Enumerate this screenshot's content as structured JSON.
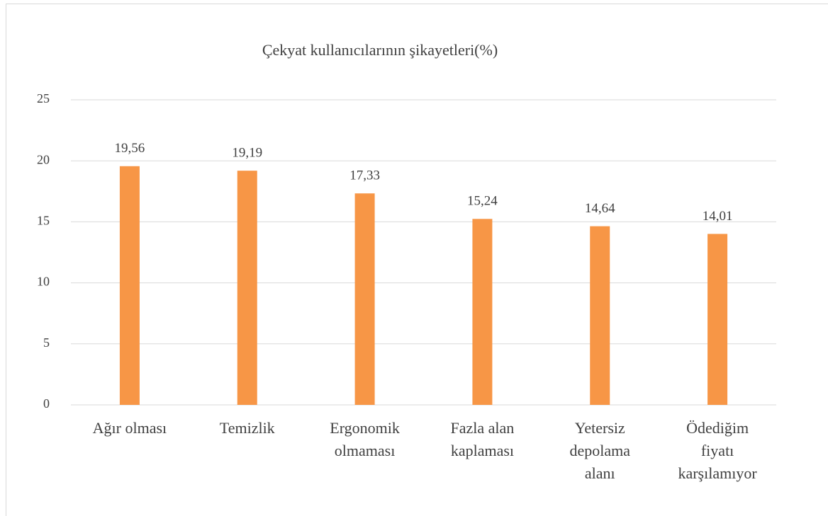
{
  "chart_data": {
    "type": "bar",
    "title": "Çekyat kullanıcılarının şikayetleri(%)",
    "categories": [
      [
        "Ağır olması"
      ],
      [
        "Temizlik"
      ],
      [
        "Ergonomik",
        "olmaması"
      ],
      [
        "Fazla alan",
        "kaplaması"
      ],
      [
        "Yetersiz",
        "depolama",
        "alanı"
      ],
      [
        "Ödediğim",
        "fiyatı",
        "karşılamıyor"
      ]
    ],
    "values": [
      19.56,
      19.19,
      17.33,
      15.24,
      14.64,
      14.01
    ],
    "value_labels": [
      "19,56",
      "19,19",
      "17,33",
      "15,24",
      "14,64",
      "14,01"
    ],
    "color": "#f79646",
    "ylim": [
      0,
      25
    ],
    "yticks": [
      0,
      5,
      10,
      15,
      20,
      25
    ],
    "grid": true
  }
}
